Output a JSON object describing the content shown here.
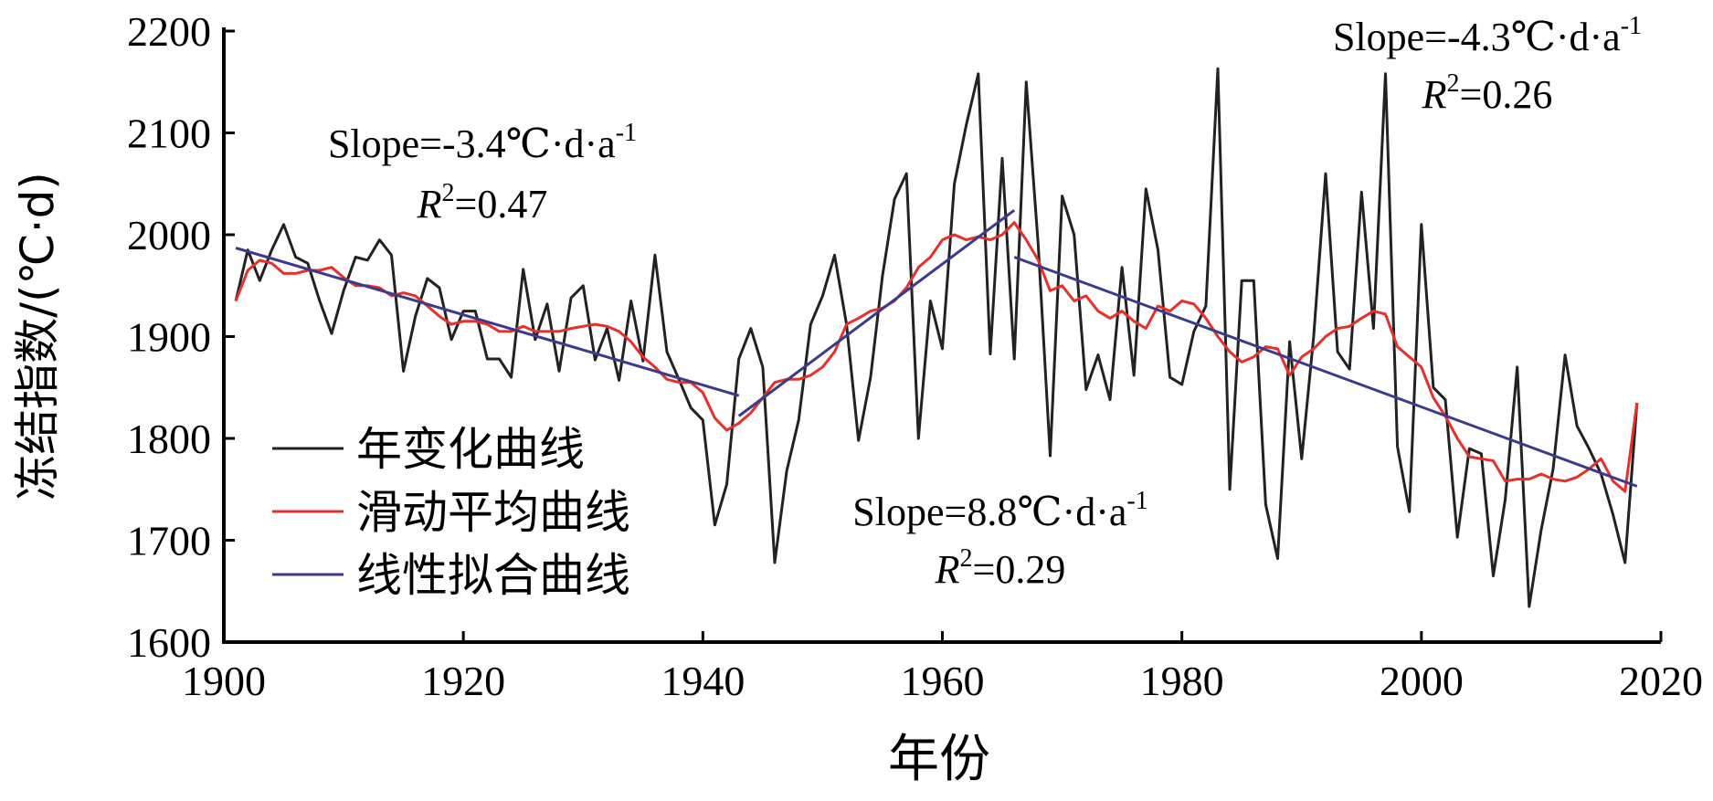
{
  "chart_data": {
    "type": "line",
    "xlabel": "年份",
    "ylabel": "冻结指数/(℃·d)",
    "xlim": [
      1900,
      2020
    ],
    "xticks": [
      1900,
      1920,
      1940,
      1960,
      1980,
      2000,
      2020
    ],
    "ylim": [
      1600,
      2200
    ],
    "yticks": [
      1600,
      1700,
      1800,
      1900,
      2000,
      2100,
      2200
    ],
    "legend": "upper-left",
    "x": [
      1901,
      1902,
      1903,
      1904,
      1905,
      1906,
      1907,
      1908,
      1909,
      1910,
      1911,
      1912,
      1913,
      1914,
      1915,
      1916,
      1917,
      1918,
      1919,
      1920,
      1921,
      1922,
      1923,
      1924,
      1925,
      1926,
      1927,
      1928,
      1929,
      1930,
      1931,
      1932,
      1933,
      1934,
      1935,
      1936,
      1937,
      1938,
      1939,
      1940,
      1941,
      1942,
      1943,
      1944,
      1945,
      1946,
      1947,
      1948,
      1949,
      1950,
      1951,
      1952,
      1953,
      1954,
      1955,
      1956,
      1957,
      1958,
      1959,
      1960,
      1961,
      1962,
      1963,
      1964,
      1965,
      1966,
      1967,
      1968,
      1969,
      1970,
      1971,
      1972,
      1973,
      1974,
      1975,
      1976,
      1977,
      1978,
      1979,
      1980,
      1981,
      1982,
      1983,
      1984,
      1985,
      1986,
      1987,
      1988,
      1989,
      1990,
      1991,
      1992,
      1993,
      1994,
      1995,
      1996,
      1997,
      1998,
      1999,
      2000,
      2001,
      2002,
      2003,
      2004,
      2005,
      2006,
      2007,
      2008,
      2009,
      2010,
      2011,
      2012,
      2013,
      2014,
      2015,
      2016,
      2017,
      2018
    ],
    "series": [
      {
        "name": "年变化曲线",
        "color": "#222222",
        "values": [
          1935,
          1985,
          1955,
          1985,
          2010,
          1978,
          1972,
          1935,
          1903,
          1945,
          1978,
          1975,
          1995,
          1980,
          1866,
          1920,
          1957,
          1948,
          1897,
          1925,
          1925,
          1878,
          1878,
          1860,
          1966,
          1897,
          1932,
          1866,
          1938,
          1950,
          1877,
          1908,
          1857,
          1935,
          1876,
          1980,
          1885,
          1858,
          1830,
          1818,
          1715,
          1755,
          1878,
          1908,
          1870,
          1678,
          1768,
          1818,
          1912,
          1940,
          1980,
          1912,
          1798,
          1860,
          1960,
          2035,
          2060,
          1800,
          1935,
          1888,
          2050,
          2108,
          2158,
          1883,
          2075,
          1878,
          2150,
          1990,
          1783,
          2038,
          2000,
          1848,
          1882,
          1838,
          1968,
          1862,
          2045,
          1985,
          1860,
          1853,
          1905,
          1930,
          2163,
          1750,
          1955,
          1955,
          1735,
          1682,
          1895,
          1780,
          1900,
          2060,
          1885,
          1868,
          2042,
          1908,
          2158,
          1792,
          1728,
          2010,
          1850,
          1838,
          1703,
          1790,
          1785,
          1665,
          1740,
          1870,
          1635,
          1710,
          1770,
          1882,
          1812,
          1790,
          1765,
          1725,
          1678,
          1835
        ]
      },
      {
        "name": "滑动平均曲线",
        "color": "#e8302a",
        "values": [
          1935,
          1965,
          1975,
          1972,
          1962,
          1962,
          1965,
          1965,
          1968,
          1958,
          1950,
          1950,
          1948,
          1940,
          1943,
          1940,
          1930,
          1920,
          1912,
          1915,
          1915,
          1912,
          1905,
          1905,
          1910,
          1905,
          1905,
          1905,
          1908,
          1910,
          1912,
          1910,
          1905,
          1895,
          1880,
          1870,
          1858,
          1855,
          1855,
          1845,
          1820,
          1808,
          1815,
          1825,
          1840,
          1855,
          1858,
          1858,
          1862,
          1870,
          1885,
          1912,
          1918,
          1925,
          1928,
          1935,
          1948,
          1968,
          1978,
          1995,
          2000,
          1995,
          1998,
          1995,
          2000,
          2012,
          1995,
          1975,
          1945,
          1950,
          1935,
          1940,
          1925,
          1918,
          1925,
          1915,
          1908,
          1930,
          1925,
          1935,
          1932,
          1918,
          1900,
          1885,
          1875,
          1880,
          1890,
          1888,
          1862,
          1880,
          1888,
          1900,
          1908,
          1910,
          1918,
          1925,
          1922,
          1890,
          1880,
          1870,
          1840,
          1822,
          1800,
          1782,
          1780,
          1778,
          1758,
          1760,
          1760,
          1765,
          1760,
          1758,
          1762,
          1770,
          1780,
          1758,
          1748,
          1835
        ]
      },
      {
        "name": "线性拟合曲线",
        "color": "#3b3a8c",
        "segments": [
          {
            "x": [
              1901,
              1943
            ],
            "values": [
              1987,
              1842
            ]
          },
          {
            "x": [
              1943,
              1966
            ],
            "values": [
              1822,
              2024
            ]
          },
          {
            "x": [
              1966,
              2018
            ],
            "values": [
              1978,
              1753
            ]
          }
        ]
      }
    ],
    "annotations": [
      {
        "slope": "Slope=-3.4℃·d·a",
        "slope_exp": "-1",
        "r": "R",
        "r_exp": "2",
        "r_value": "=0.47"
      },
      {
        "slope": "Slope=8.8℃·d·a",
        "slope_exp": "-1",
        "r": "R",
        "r_exp": "2",
        "r_value": "=0.29"
      },
      {
        "slope": "Slope=-4.3℃·d·a",
        "slope_exp": "-1",
        "r": "R",
        "r_exp": "2",
        "r_value": "=0.26"
      }
    ]
  }
}
